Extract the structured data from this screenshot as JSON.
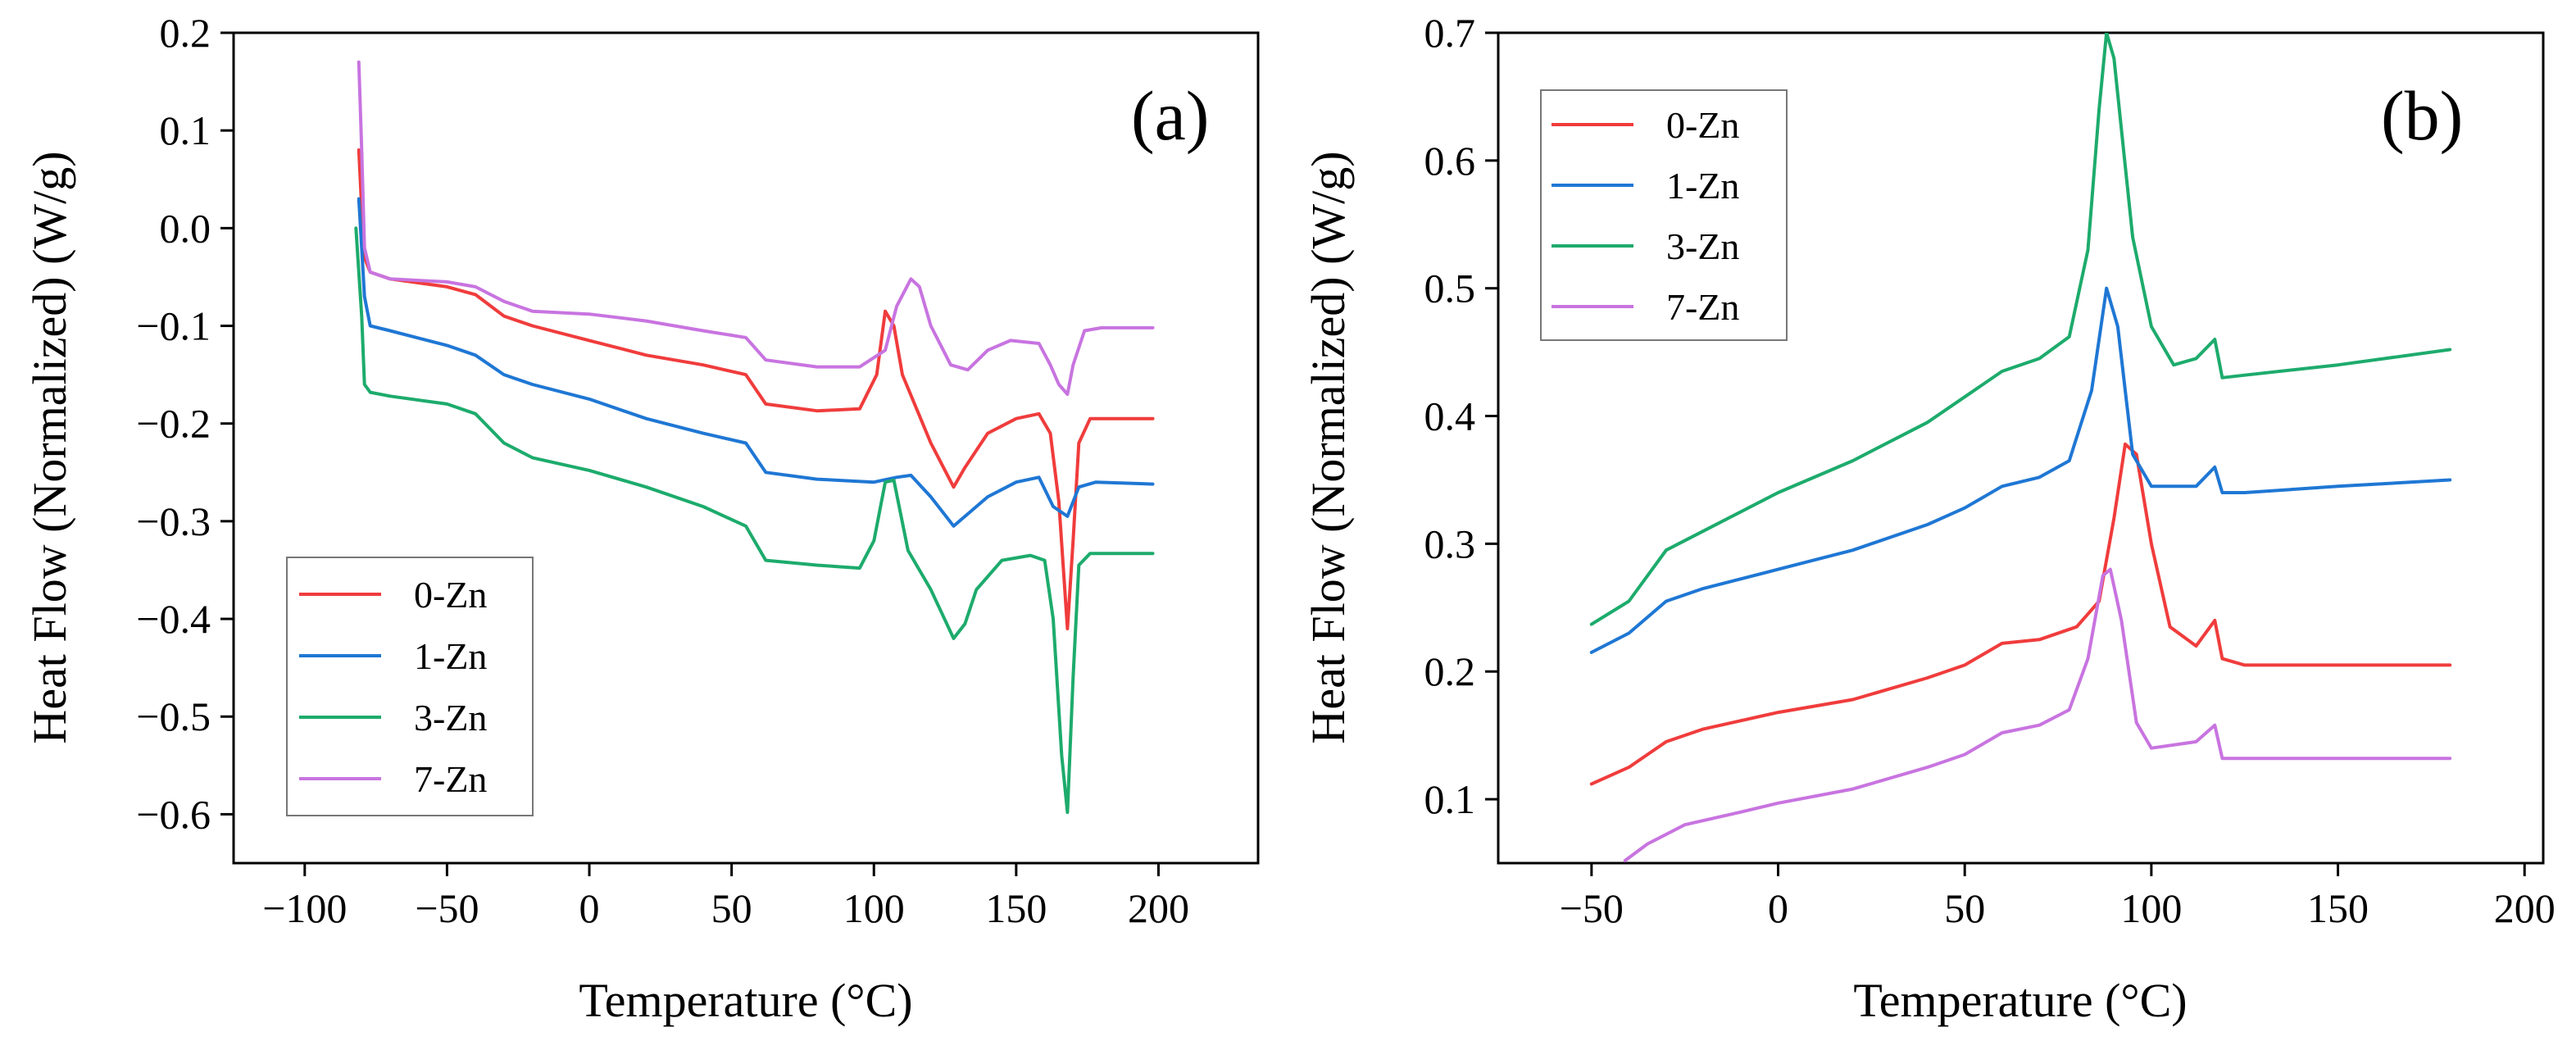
{
  "chart_data": [
    {
      "type": "line",
      "panel_label": "(a)",
      "xlabel": "Temperature (°C)",
      "ylabel": "Heat Flow (Normalized) (W/g)",
      "xlim": [
        -125,
        235
      ],
      "ylim": [
        -0.65,
        0.2
      ],
      "xticks": [
        -100,
        -50,
        0,
        50,
        100,
        150,
        200
      ],
      "xtick_labels": [
        "−100",
        "−50",
        "0",
        "50",
        "100",
        "150",
        "200"
      ],
      "yticks": [
        0.2,
        0.1,
        0.0,
        -0.1,
        -0.2,
        -0.3,
        -0.4,
        -0.5,
        -0.6
      ],
      "ytick_labels": [
        "0.2",
        "0.1",
        "0.0",
        "−0.1",
        "−0.2",
        "−0.3",
        "−0.4",
        "−0.5",
        "−0.6"
      ],
      "legend_position": "bottom-left",
      "series": [
        {
          "name": "0-Zn",
          "color": "#f03c3c",
          "points": [
            [
              -81,
              0.08
            ],
            [
              -80,
              0.02
            ],
            [
              -79,
              -0.03
            ],
            [
              -77,
              -0.045
            ],
            [
              -70,
              -0.052
            ],
            [
              -50,
              -0.06
            ],
            [
              -40,
              -0.068
            ],
            [
              -30,
              -0.09
            ],
            [
              -20,
              -0.1
            ],
            [
              0,
              -0.115
            ],
            [
              20,
              -0.13
            ],
            [
              40,
              -0.14
            ],
            [
              55,
              -0.15
            ],
            [
              62,
              -0.18
            ],
            [
              80,
              -0.187
            ],
            [
              95,
              -0.185
            ],
            [
              101,
              -0.15
            ],
            [
              104,
              -0.085
            ],
            [
              107,
              -0.1
            ],
            [
              110,
              -0.15
            ],
            [
              120,
              -0.22
            ],
            [
              128,
              -0.265
            ],
            [
              132,
              -0.245
            ],
            [
              140,
              -0.21
            ],
            [
              150,
              -0.195
            ],
            [
              158,
              -0.19
            ],
            [
              162,
              -0.21
            ],
            [
              165,
              -0.28
            ],
            [
              168,
              -0.41
            ],
            [
              170,
              -0.32
            ],
            [
              172,
              -0.22
            ],
            [
              176,
              -0.195
            ],
            [
              190,
              -0.195
            ],
            [
              198,
              -0.195
            ]
          ]
        },
        {
          "name": "1-Zn",
          "color": "#1f77d4",
          "points": [
            [
              -81,
              0.03
            ],
            [
              -80,
              -0.02
            ],
            [
              -79,
              -0.07
            ],
            [
              -77,
              -0.1
            ],
            [
              -70,
              -0.105
            ],
            [
              -50,
              -0.12
            ],
            [
              -40,
              -0.13
            ],
            [
              -30,
              -0.15
            ],
            [
              -20,
              -0.16
            ],
            [
              0,
              -0.175
            ],
            [
              20,
              -0.195
            ],
            [
              40,
              -0.21
            ],
            [
              55,
              -0.22
            ],
            [
              62,
              -0.25
            ],
            [
              80,
              -0.257
            ],
            [
              100,
              -0.26
            ],
            [
              108,
              -0.255
            ],
            [
              113,
              -0.253
            ],
            [
              120,
              -0.275
            ],
            [
              128,
              -0.305
            ],
            [
              134,
              -0.29
            ],
            [
              140,
              -0.275
            ],
            [
              150,
              -0.26
            ],
            [
              158,
              -0.255
            ],
            [
              163,
              -0.285
            ],
            [
              168,
              -0.295
            ],
            [
              172,
              -0.265
            ],
            [
              178,
              -0.26
            ],
            [
              198,
              -0.262
            ]
          ]
        },
        {
          "name": "3-Zn",
          "color": "#1dab6c",
          "points": [
            [
              -82,
              -0.0
            ],
            [
              -80,
              -0.09
            ],
            [
              -79,
              -0.16
            ],
            [
              -77,
              -0.168
            ],
            [
              -70,
              -0.172
            ],
            [
              -50,
              -0.18
            ],
            [
              -40,
              -0.19
            ],
            [
              -30,
              -0.22
            ],
            [
              -20,
              -0.235
            ],
            [
              0,
              -0.248
            ],
            [
              20,
              -0.265
            ],
            [
              40,
              -0.285
            ],
            [
              55,
              -0.305
            ],
            [
              62,
              -0.34
            ],
            [
              80,
              -0.345
            ],
            [
              95,
              -0.348
            ],
            [
              100,
              -0.32
            ],
            [
              104,
              -0.26
            ],
            [
              107,
              -0.258
            ],
            [
              112,
              -0.33
            ],
            [
              120,
              -0.37
            ],
            [
              128,
              -0.42
            ],
            [
              132,
              -0.405
            ],
            [
              136,
              -0.37
            ],
            [
              145,
              -0.34
            ],
            [
              155,
              -0.335
            ],
            [
              160,
              -0.34
            ],
            [
              163,
              -0.4
            ],
            [
              166,
              -0.54
            ],
            [
              168,
              -0.598
            ],
            [
              170,
              -0.46
            ],
            [
              172,
              -0.345
            ],
            [
              176,
              -0.333
            ],
            [
              198,
              -0.333
            ]
          ]
        },
        {
          "name": "7-Zn",
          "color": "#c874e0",
          "points": [
            [
              -81,
              0.17
            ],
            [
              -80,
              0.08
            ],
            [
              -79,
              -0.02
            ],
            [
              -77,
              -0.045
            ],
            [
              -70,
              -0.052
            ],
            [
              -50,
              -0.055
            ],
            [
              -40,
              -0.06
            ],
            [
              -30,
              -0.075
            ],
            [
              -20,
              -0.085
            ],
            [
              0,
              -0.088
            ],
            [
              20,
              -0.095
            ],
            [
              40,
              -0.105
            ],
            [
              55,
              -0.112
            ],
            [
              62,
              -0.135
            ],
            [
              80,
              -0.142
            ],
            [
              95,
              -0.142
            ],
            [
              104,
              -0.125
            ],
            [
              108,
              -0.08
            ],
            [
              113,
              -0.052
            ],
            [
              116,
              -0.06
            ],
            [
              120,
              -0.1
            ],
            [
              127,
              -0.14
            ],
            [
              133,
              -0.145
            ],
            [
              140,
              -0.125
            ],
            [
              148,
              -0.115
            ],
            [
              158,
              -0.118
            ],
            [
              162,
              -0.14
            ],
            [
              165,
              -0.16
            ],
            [
              168,
              -0.17
            ],
            [
              170,
              -0.14
            ],
            [
              174,
              -0.105
            ],
            [
              180,
              -0.102
            ],
            [
              198,
              -0.102
            ]
          ]
        }
      ]
    },
    {
      "type": "line",
      "panel_label": "(b)",
      "xlabel": "Temperature (°C)",
      "ylabel": "Heat Flow (Normalized) (W/g)",
      "xlim": [
        -75,
        205
      ],
      "ylim": [
        0.05,
        0.7
      ],
      "xticks": [
        -50,
        0,
        50,
        100,
        150,
        200
      ],
      "xtick_labels": [
        "−50",
        "0",
        "50",
        "100",
        "150",
        "200"
      ],
      "yticks": [
        0.7,
        0.6,
        0.5,
        0.4,
        0.3,
        0.2,
        0.1
      ],
      "ytick_labels": [
        "0.7",
        "0.6",
        "0.5",
        "0.4",
        "0.3",
        "0.2",
        "0.1"
      ],
      "legend_position": "top-left",
      "series": [
        {
          "name": "0-Zn",
          "color": "#f03c3c",
          "points": [
            [
              -50,
              0.112
            ],
            [
              -40,
              0.125
            ],
            [
              -30,
              0.145
            ],
            [
              -20,
              0.155
            ],
            [
              0,
              0.168
            ],
            [
              20,
              0.178
            ],
            [
              40,
              0.195
            ],
            [
              50,
              0.205
            ],
            [
              60,
              0.222
            ],
            [
              70,
              0.225
            ],
            [
              80,
              0.235
            ],
            [
              86,
              0.255
            ],
            [
              90,
              0.32
            ],
            [
              93,
              0.378
            ],
            [
              96,
              0.37
            ],
            [
              100,
              0.3
            ],
            [
              105,
              0.235
            ],
            [
              112,
              0.22
            ],
            [
              117,
              0.24
            ],
            [
              119,
              0.21
            ],
            [
              125,
              0.205
            ],
            [
              150,
              0.205
            ],
            [
              180,
              0.205
            ]
          ]
        },
        {
          "name": "1-Zn",
          "color": "#1f77d4",
          "points": [
            [
              -50,
              0.215
            ],
            [
              -40,
              0.23
            ],
            [
              -30,
              0.255
            ],
            [
              -20,
              0.265
            ],
            [
              0,
              0.28
            ],
            [
              20,
              0.295
            ],
            [
              40,
              0.315
            ],
            [
              50,
              0.328
            ],
            [
              60,
              0.345
            ],
            [
              70,
              0.352
            ],
            [
              78,
              0.365
            ],
            [
              84,
              0.42
            ],
            [
              88,
              0.5
            ],
            [
              91,
              0.47
            ],
            [
              95,
              0.37
            ],
            [
              100,
              0.345
            ],
            [
              112,
              0.345
            ],
            [
              117,
              0.36
            ],
            [
              119,
              0.34
            ],
            [
              125,
              0.34
            ],
            [
              150,
              0.345
            ],
            [
              180,
              0.35
            ]
          ]
        },
        {
          "name": "3-Zn",
          "color": "#1dab6c",
          "points": [
            [
              -50,
              0.237
            ],
            [
              -40,
              0.255
            ],
            [
              -30,
              0.295
            ],
            [
              -20,
              0.31
            ],
            [
              0,
              0.34
            ],
            [
              20,
              0.365
            ],
            [
              40,
              0.395
            ],
            [
              50,
              0.415
            ],
            [
              60,
              0.435
            ],
            [
              70,
              0.445
            ],
            [
              78,
              0.462
            ],
            [
              83,
              0.53
            ],
            [
              86,
              0.64
            ],
            [
              88,
              0.7
            ],
            [
              90,
              0.68
            ],
            [
              95,
              0.54
            ],
            [
              100,
              0.47
            ],
            [
              106,
              0.44
            ],
            [
              112,
              0.445
            ],
            [
              117,
              0.46
            ],
            [
              119,
              0.43
            ],
            [
              125,
              0.432
            ],
            [
              150,
              0.44
            ],
            [
              180,
              0.452
            ]
          ]
        },
        {
          "name": "7-Zn",
          "color": "#c874e0",
          "points": [
            [
              -41,
              0.052
            ],
            [
              -35,
              0.065
            ],
            [
              -25,
              0.08
            ],
            [
              -10,
              0.09
            ],
            [
              0,
              0.097
            ],
            [
              20,
              0.108
            ],
            [
              40,
              0.125
            ],
            [
              50,
              0.135
            ],
            [
              60,
              0.152
            ],
            [
              70,
              0.158
            ],
            [
              78,
              0.17
            ],
            [
              83,
              0.21
            ],
            [
              87,
              0.275
            ],
            [
              89,
              0.28
            ],
            [
              92,
              0.24
            ],
            [
              96,
              0.16
            ],
            [
              100,
              0.14
            ],
            [
              112,
              0.145
            ],
            [
              117,
              0.158
            ],
            [
              119,
              0.132
            ],
            [
              125,
              0.132
            ],
            [
              150,
              0.132
            ],
            [
              180,
              0.132
            ]
          ]
        }
      ]
    }
  ]
}
